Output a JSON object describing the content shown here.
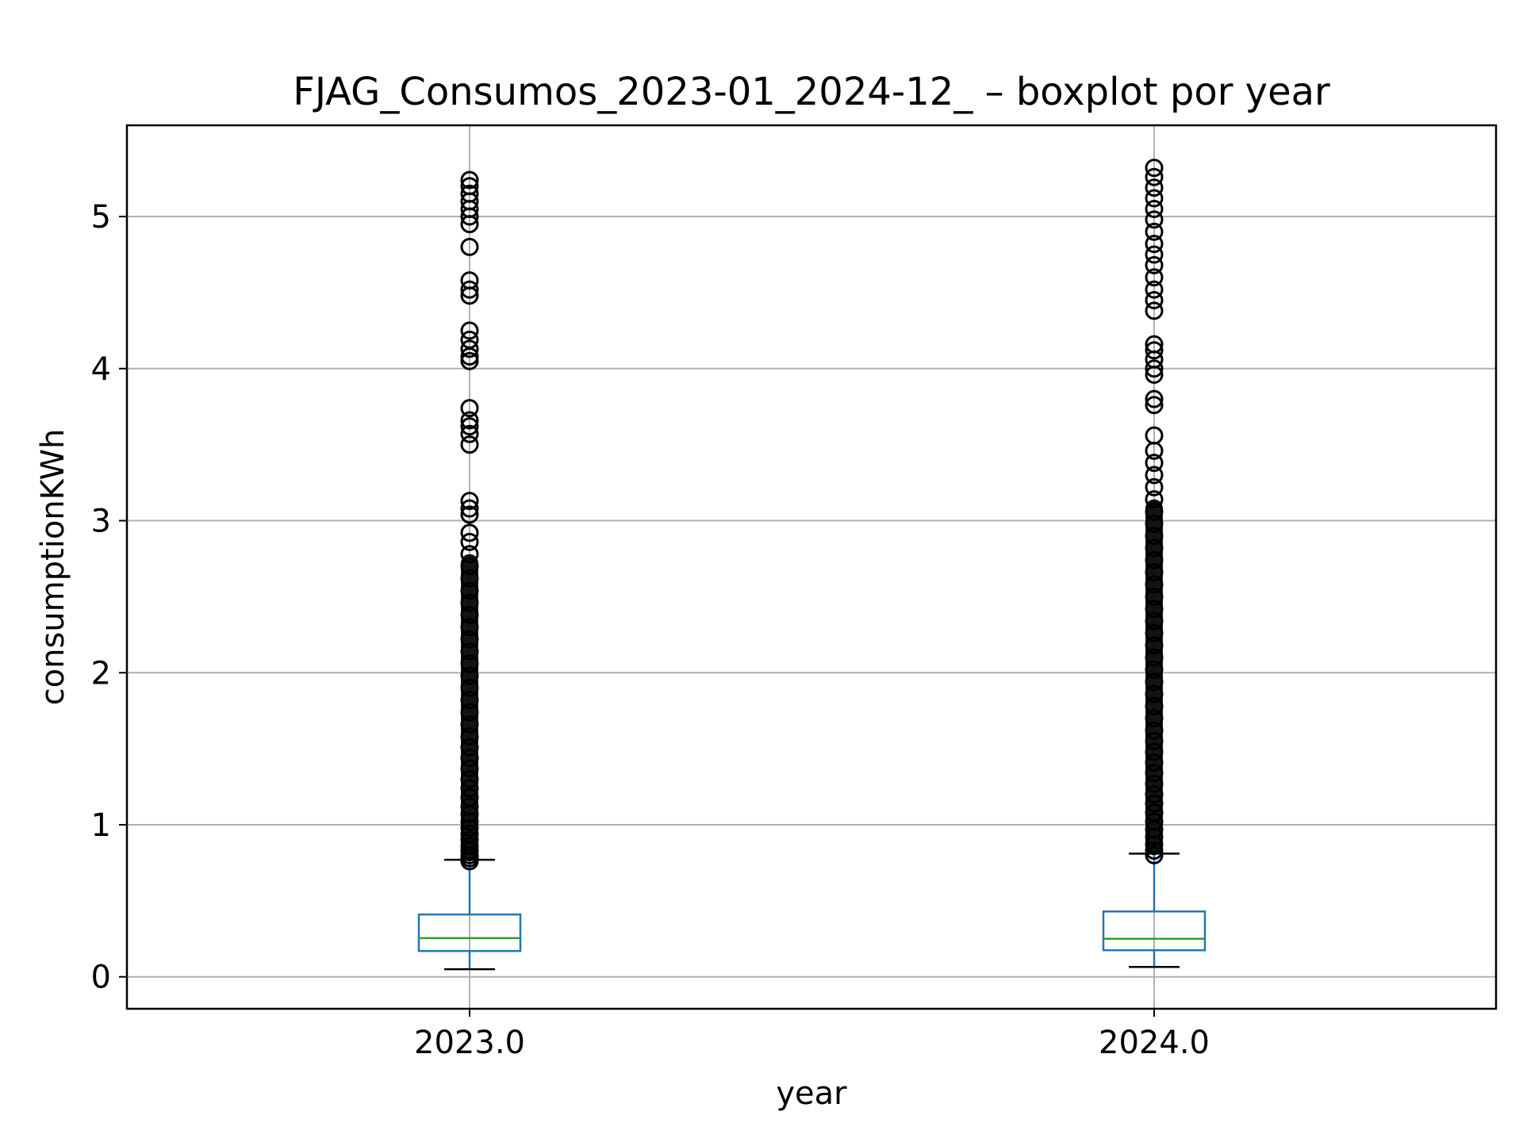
{
  "chart_data": {
    "type": "boxplot",
    "title": "FJAG_Consumos_2023-01_2024-12_ – boxplot por year",
    "xlabel": "year",
    "ylabel": "consumptionKWh",
    "categories": [
      "2023.0",
      "2024.0"
    ],
    "ylim": [
      -0.21,
      5.6
    ],
    "yticks": [
      0,
      1,
      2,
      3,
      4,
      5
    ],
    "ytick_labels": [
      "0",
      "1",
      "2",
      "3",
      "4",
      "5"
    ],
    "grid": true,
    "boxes": [
      {
        "category": "2023.0",
        "whisker_low": 0.05,
        "q1": 0.17,
        "median": 0.255,
        "q3": 0.41,
        "whisker_high": 0.77,
        "outliers": [
          0.76,
          0.78,
          0.8,
          0.83,
          0.86,
          0.9,
          0.94,
          0.98,
          1.02,
          1.07,
          1.12,
          1.18,
          1.24,
          1.3,
          1.37,
          1.44,
          1.51,
          1.58,
          1.66,
          1.74,
          1.82,
          1.9,
          1.98,
          2.06,
          2.14,
          2.22,
          2.3,
          2.38,
          2.46,
          2.54,
          2.62,
          2.7,
          2.78,
          2.86,
          2.92,
          3.04,
          3.08,
          3.13,
          3.5,
          3.57,
          3.62,
          3.66,
          3.74,
          4.05,
          4.08,
          4.13,
          4.19,
          4.25,
          4.48,
          4.52,
          4.58,
          4.8,
          4.95,
          5.0,
          5.05,
          5.1,
          5.15,
          5.2,
          5.24
        ]
      },
      {
        "category": "2024.0",
        "whisker_low": 0.065,
        "q1": 0.175,
        "median": 0.25,
        "q3": 0.43,
        "whisker_high": 0.81,
        "outliers": [
          0.8,
          0.83,
          0.87,
          0.92,
          0.97,
          1.02,
          1.08,
          1.14,
          1.2,
          1.27,
          1.34,
          1.41,
          1.48,
          1.55,
          1.62,
          1.7,
          1.78,
          1.86,
          1.94,
          2.02,
          2.1,
          2.18,
          2.26,
          2.34,
          2.42,
          2.5,
          2.58,
          2.66,
          2.74,
          2.82,
          2.9,
          2.98,
          3.06,
          3.14,
          3.22,
          3.3,
          3.38,
          3.46,
          3.56,
          3.76,
          3.8,
          3.96,
          4.0,
          4.06,
          4.12,
          4.16,
          4.38,
          4.45,
          4.52,
          4.6,
          4.68,
          4.75,
          4.82,
          4.9,
          4.98,
          5.05,
          5.12,
          5.19,
          5.26,
          5.32
        ]
      }
    ],
    "colors": {
      "box": "#1f77b4",
      "median": "#2ca02c",
      "flier": "#000000",
      "cap": "#000000",
      "grid": "#b0b0b0",
      "axes": "#000000"
    }
  }
}
